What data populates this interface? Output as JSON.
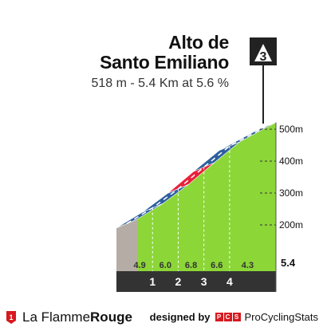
{
  "header": {
    "title_line1": "Alto de",
    "title_line2": "Santo Emiliano",
    "subtitle": "518 m - 5.4 Km at 5.6 %",
    "category": "3"
  },
  "footer": {
    "brand_part1": "La Flamme",
    "brand_part2": "Rouge",
    "designed_by": "designed by",
    "pcs_badge": [
      "P",
      "C",
      "S"
    ],
    "pcs_name": "ProCyclingStats"
  },
  "chart_data": {
    "type": "area",
    "title": "Alto de Santo Emiliano",
    "subtitle": "518 m - 5.4 Km at 5.6 %",
    "distance_km": 5.4,
    "y_tick_labels": [
      "200m",
      "300m",
      "400m",
      "500m"
    ],
    "y_ticks": [
      200,
      300,
      400,
      500
    ],
    "km_markers": [
      "1",
      "2",
      "3",
      "4"
    ],
    "km_marker_positions": [
      1,
      2,
      3,
      4
    ],
    "distance_label": "5.4",
    "segments": [
      {
        "from_km": 0,
        "to_km": 1,
        "gradient": 4.9,
        "label": "4.9",
        "color": "#2d5f9e"
      },
      {
        "from_km": 1,
        "to_km": 2,
        "gradient": 6.0,
        "label": "6.0",
        "color": "#2d5f9e"
      },
      {
        "from_km": 2,
        "to_km": 3,
        "gradient": 6.8,
        "label": "6.8",
        "color": "#e8213a"
      },
      {
        "from_km": 3,
        "to_km": 4,
        "gradient": 6.6,
        "label": "6.6",
        "color": "#2d5f9e"
      },
      {
        "from_km": 4,
        "to_km": 5.4,
        "gradient": 4.3,
        "label": "4.3",
        "color": "#2d5f9e"
      }
    ],
    "summit_color": "#7ac943",
    "area_color": "#8cd638",
    "colors": {
      "blue": "#2d5f9e",
      "red": "#e8213a",
      "green": "#8cd638",
      "grey": "#b5ada5",
      "dark": "#333333"
    }
  }
}
